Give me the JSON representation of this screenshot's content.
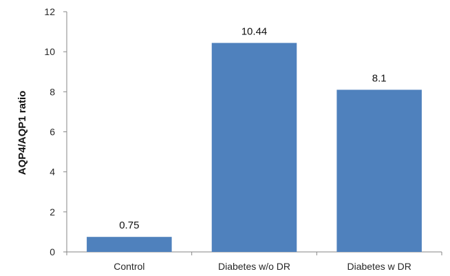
{
  "chart_data": {
    "type": "bar",
    "categories": [
      "Control",
      "Diabetes w/o DR",
      "Diabetes w DR"
    ],
    "values": [
      0.75,
      10.44,
      8.1
    ],
    "value_labels": [
      "0.75",
      "10.44",
      "8.1"
    ],
    "ylabel": "AQP4/AQP1 ratio",
    "ylim": [
      0,
      12
    ],
    "yticks": [
      0,
      2,
      4,
      6,
      8,
      10,
      12
    ],
    "ytick_labels": [
      "0",
      "2",
      "4",
      "6",
      "8",
      "10",
      "12"
    ],
    "grid": false,
    "legend": "none",
    "bar_color": "#4f81bd"
  }
}
